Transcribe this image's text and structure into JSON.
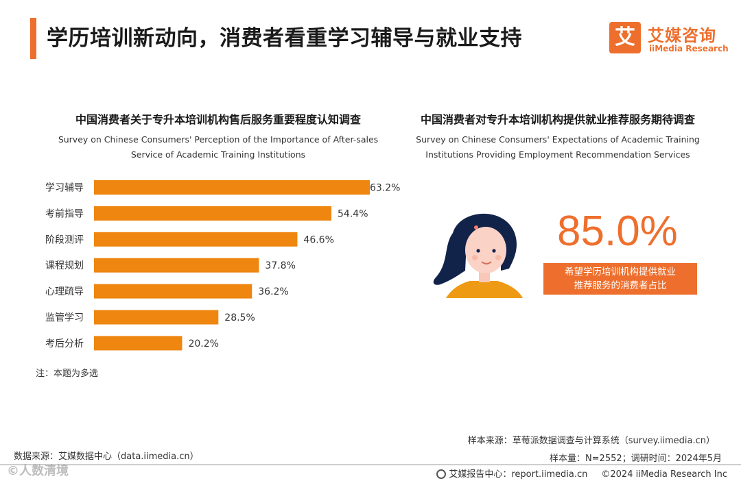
{
  "header": {
    "title": "学历培训新动向，消费者看重学习辅导与就业支持",
    "logo_mark": "艾",
    "logo_cn": "艾媒咨询",
    "logo_en": "iiMedia Research",
    "accent_color": "#ee6f2d"
  },
  "left_chart": {
    "title_cn": "中国消费者关于专升本培训机构售后服务重要程度认知调查",
    "title_en_line1": "Survey on Chinese Consumers' Perception of the Importance of After-sales",
    "title_en_line2": "Service of Academic Training Institutions",
    "note": "注：本题为多选"
  },
  "right_chart": {
    "title_cn": "中国消费者对专升本培训机构提供就业推荐服务期待调查",
    "title_en_line1": "Survey on Chinese Consumers' Expectations of Academic Training",
    "title_en_line2": "Institutions Providing Employment Recommendation Services",
    "value_label": "85.0%",
    "desc_line1": "希望学历培训机构提供就业",
    "desc_line2": "推荐服务的消费者占比"
  },
  "chart_data": [
    {
      "type": "bar",
      "orientation": "horizontal",
      "title": "中国消费者关于专升本培训机构售后服务重要程度认知调查",
      "categories": [
        "学习辅导",
        "考前指导",
        "阶段测评",
        "课程规划",
        "心理疏导",
        "监管学习",
        "考后分析"
      ],
      "values": [
        63.2,
        54.4,
        46.6,
        37.8,
        36.2,
        28.5,
        20.2
      ],
      "value_labels": [
        "63.2%",
        "54.4%",
        "46.6%",
        "37.8%",
        "36.2%",
        "28.5%",
        "20.2%"
      ],
      "unit": "%",
      "bar_color": "#ee860f",
      "grid": false
    },
    {
      "type": "single-value",
      "title": "中国消费者对专升本培训机构提供就业推荐服务期待调查",
      "value": 85.0,
      "unit": "%"
    }
  ],
  "sources": {
    "survey": "样本来源：草莓派数据调查与计算系统（survey.iimedia.cn）",
    "sample": "样本量：N=2552；调研时间：2024年5月",
    "data": "数据来源：艾媒数据中心（data.iimedia.cn）",
    "watermark": "©人数清境",
    "footer_report": "艾媒报告中心：report.iimedia.cn",
    "footer_copyright": "©2024  iiMedia Research  Inc"
  }
}
